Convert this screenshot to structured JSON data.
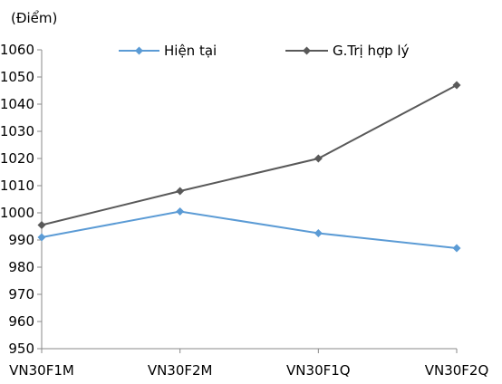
{
  "chart_data": {
    "type": "line",
    "title": "",
    "ylabel": "(Điểm)",
    "xlabel": "",
    "categories": [
      "VN30F1M",
      "VN30F2M",
      "VN30F1Q",
      "VN30F2Q"
    ],
    "ylim": [
      950,
      1060
    ],
    "ytick_step": 10,
    "ytick_labels": [
      "950",
      "960",
      "970",
      "980",
      "990",
      "1000",
      "1010",
      "1020",
      "1030",
      "1040",
      "1050",
      "1060"
    ],
    "grid": false,
    "legend": "top",
    "series": [
      {
        "name": "Hiện tại",
        "color": "#5b9bd5",
        "marker": "diamond",
        "values": [
          991,
          1000.5,
          992.5,
          987
        ]
      },
      {
        "name": "G.Trị hợp lý",
        "color": "#595959",
        "marker": "diamond",
        "values": [
          995.5,
          1008,
          1020,
          1047
        ]
      }
    ]
  }
}
